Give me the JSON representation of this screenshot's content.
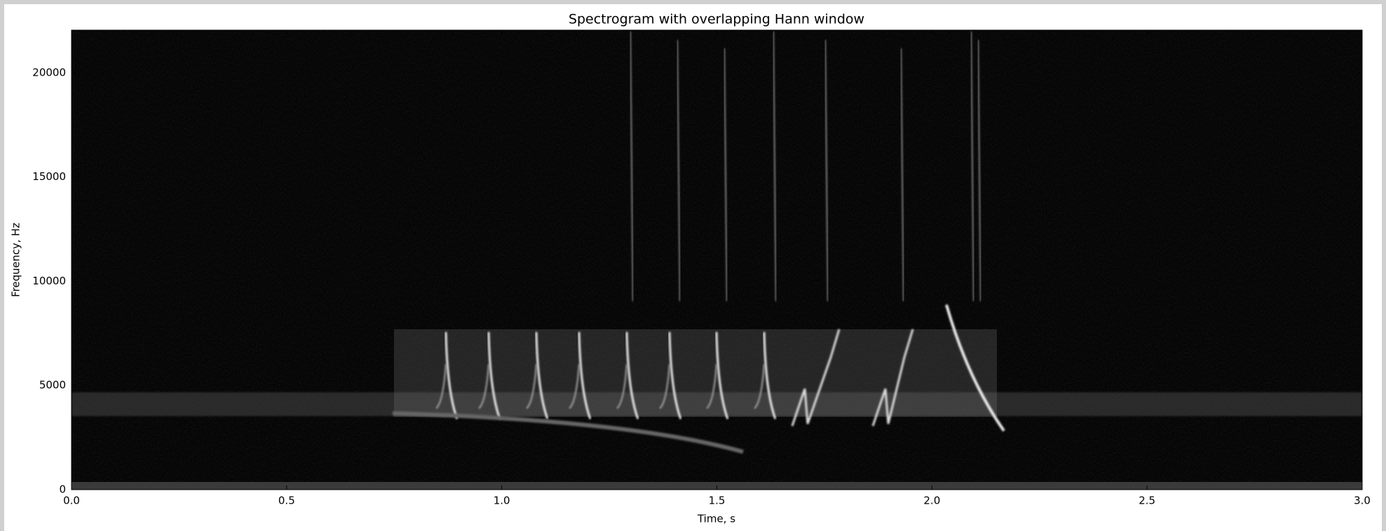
{
  "chart_data": {
    "type": "spectrogram",
    "title": "Spectrogram with overlapping Hann window",
    "x_label": "Time, s",
    "y_label": "Frequency, Hz",
    "xlim": [
      0,
      3
    ],
    "ylim": [
      0,
      22050
    ],
    "xticks": [
      {
        "value": 0,
        "label": "0.0"
      },
      0.5,
      {
        "value": 1,
        "label": "1.0"
      },
      1.5,
      {
        "value": 2,
        "label": "2.0"
      },
      2.5,
      {
        "value": 3,
        "label": "3.0"
      }
    ],
    "yticks": [
      0,
      5000,
      10000,
      15000,
      20000
    ],
    "colormap": "gray"
  }
}
